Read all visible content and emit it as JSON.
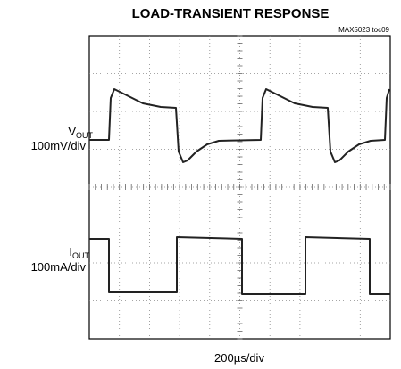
{
  "title": "LOAD-TRANSIENT RESPONSE",
  "figure_code": "MAX5023 toc09",
  "vout_label": {
    "main": "V",
    "sub": "OUT",
    "scale": "100mV/div"
  },
  "iout_label": {
    "main": "I",
    "sub": "OUT",
    "scale": "100mA/div"
  },
  "time_scale": "200µs/div"
}
